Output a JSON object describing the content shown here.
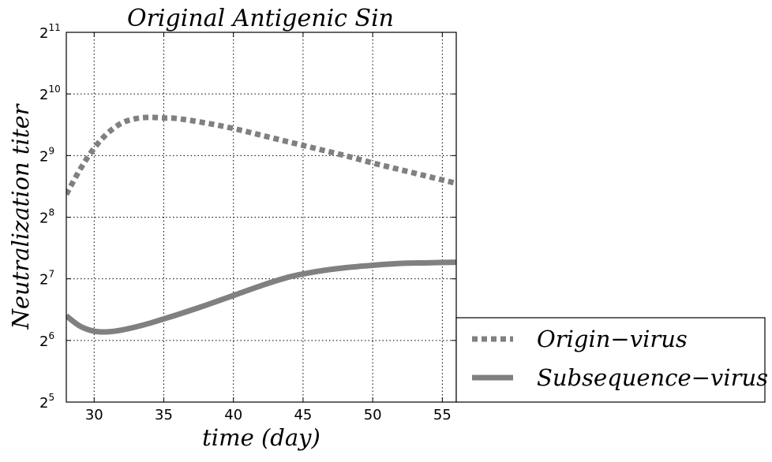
{
  "chart_data": {
    "type": "line",
    "title": "Original Antigenic Sin",
    "xlabel": "time (day)",
    "ylabel": "Neutralization  titer",
    "xlim": [
      28,
      56
    ],
    "ylim_log2": [
      5,
      11
    ],
    "y_scale": "log2",
    "x_ticks": [
      30,
      35,
      40,
      45,
      50,
      55
    ],
    "y_ticks": [
      {
        "base": "2",
        "exp": "5"
      },
      {
        "base": "2",
        "exp": "6"
      },
      {
        "base": "2",
        "exp": "7"
      },
      {
        "base": "2",
        "exp": "8"
      },
      {
        "base": "2",
        "exp": "9"
      },
      {
        "base": "2",
        "exp": "10"
      },
      {
        "base": "2",
        "exp": "11"
      }
    ],
    "grid": true,
    "legend_position": "lower-right outside",
    "series": [
      {
        "name": "Origin−virus",
        "style": "dotted",
        "color": "#808080",
        "x": [
          28,
          29,
          30,
          31,
          32,
          33,
          34,
          35,
          36,
          38,
          40,
          42,
          44,
          46,
          48,
          50,
          52,
          54,
          56
        ],
        "y_log2": [
          8.37,
          8.78,
          9.12,
          9.37,
          9.53,
          9.6,
          9.62,
          9.61,
          9.6,
          9.53,
          9.44,
          9.33,
          9.22,
          9.11,
          9.0,
          8.88,
          8.77,
          8.66,
          8.55
        ]
      },
      {
        "name": "Subsequence−virus",
        "style": "solid",
        "color": "#808080",
        "x": [
          28,
          29,
          30,
          31,
          32,
          33,
          34,
          35,
          36,
          38,
          40,
          42,
          44,
          46,
          48,
          50,
          52,
          54,
          56
        ],
        "y_log2": [
          6.4,
          6.23,
          6.15,
          6.14,
          6.17,
          6.22,
          6.28,
          6.35,
          6.42,
          6.57,
          6.73,
          6.89,
          7.03,
          7.12,
          7.18,
          7.22,
          7.25,
          7.26,
          7.27
        ]
      }
    ]
  }
}
